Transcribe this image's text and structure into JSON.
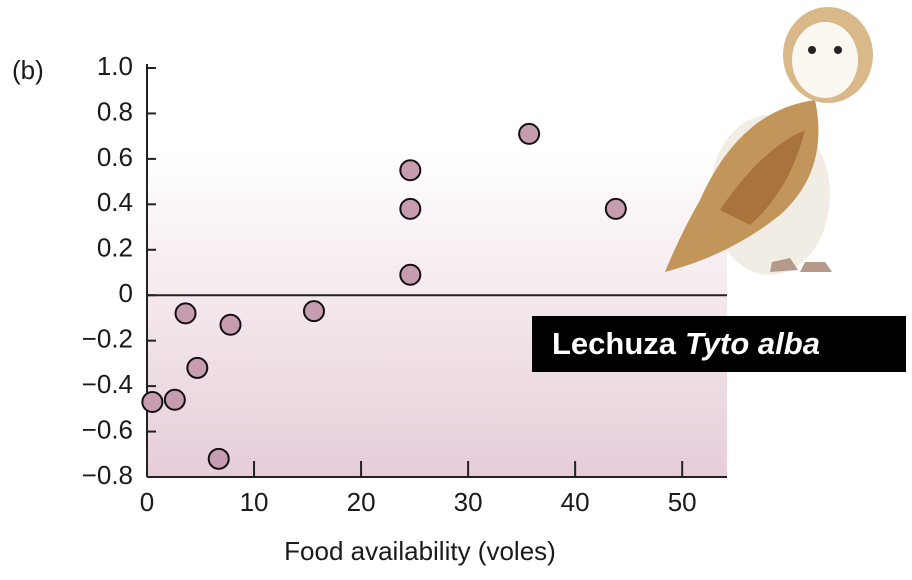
{
  "chart_data": {
    "type": "scatter",
    "title": "(b)",
    "x_label": "Food availability (voles)",
    "annotation": {
      "common": "Lechuza",
      "scientific": "Tyto alba"
    },
    "x": [
      0.5,
      2.6,
      3.6,
      4.7,
      6.7,
      7.8,
      15.6,
      24.6,
      24.6,
      24.6,
      35.7,
      43.8
    ],
    "values": [
      -0.47,
      -0.46,
      -0.08,
      -0.32,
      -0.72,
      -0.13,
      -0.07,
      0.55,
      0.38,
      0.09,
      0.71,
      0.38
    ],
    "color": "#c79bb0",
    "xlim": [
      0,
      54
    ],
    "xticks": [
      0,
      10,
      20,
      30,
      40,
      50
    ],
    "ylim": [
      -0.8,
      1.0
    ],
    "yticks": [
      {
        "value": -0.8,
        "label": "−0.8"
      },
      {
        "value": -0.6,
        "label": "−0.6"
      },
      {
        "value": -0.4,
        "label": "−0.4"
      },
      {
        "value": -0.2,
        "label": "−0.2"
      },
      0,
      0.2,
      0.4,
      0.6,
      0.8,
      {
        "value": 1,
        "label": "1.0"
      }
    ],
    "zero_line": true
  }
}
